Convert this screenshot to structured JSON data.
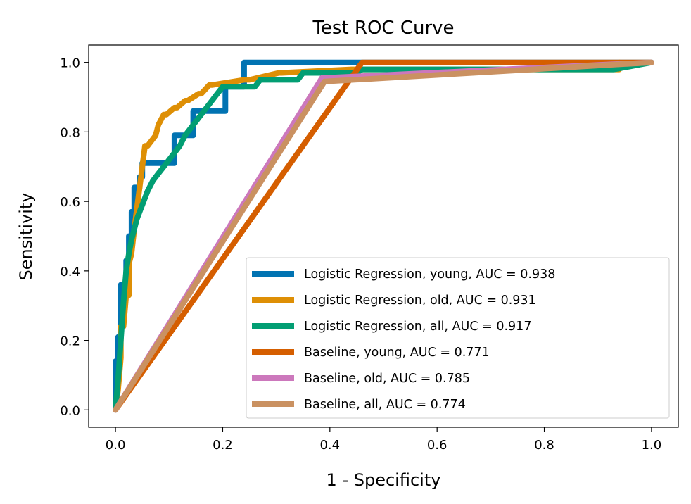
{
  "chart_data": {
    "type": "line",
    "title": "Test ROC Curve",
    "xlabel": "1 - Specificity",
    "ylabel": "Sensitivity",
    "xlim": [
      -0.05,
      1.05
    ],
    "ylim": [
      -0.05,
      1.05
    ],
    "xticks": [
      "0.0",
      "0.2",
      "0.4",
      "0.6",
      "0.8",
      "1.0"
    ],
    "yticks": [
      "0.0",
      "0.2",
      "0.4",
      "0.6",
      "0.8",
      "1.0"
    ],
    "grid": false,
    "legend_position": "lower-right",
    "series": [
      {
        "name": "Logistic Regression, young, AUC = 0.938",
        "color": "#0173b2",
        "x": [
          0,
          0,
          0.005,
          0.005,
          0.01,
          0.01,
          0.02,
          0.02,
          0.025,
          0.025,
          0.03,
          0.03,
          0.035,
          0.035,
          0.045,
          0.045,
          0.05,
          0.05,
          0.07,
          0.07,
          0.11,
          0.11,
          0.145,
          0.145,
          0.205,
          0.205,
          0.24,
          0.24,
          0.45,
          1.0
        ],
        "y": [
          0,
          0.14,
          0.14,
          0.21,
          0.21,
          0.36,
          0.36,
          0.43,
          0.43,
          0.5,
          0.5,
          0.57,
          0.57,
          0.64,
          0.64,
          0.67,
          0.67,
          0.71,
          0.71,
          0.71,
          0.71,
          0.79,
          0.79,
          0.86,
          0.86,
          0.93,
          0.93,
          1.0,
          1.0,
          1.0
        ]
      },
      {
        "name": "Logistic Regression, old, AUC = 0.931",
        "color": "#de8f05",
        "x": [
          0,
          0.005,
          0.01,
          0.01,
          0.015,
          0.02,
          0.025,
          0.025,
          0.03,
          0.035,
          0.04,
          0.045,
          0.05,
          0.055,
          0.06,
          0.075,
          0.08,
          0.09,
          0.095,
          0.11,
          0.115,
          0.13,
          0.135,
          0.155,
          0.16,
          0.175,
          0.18,
          0.24,
          0.25,
          0.305,
          0.31,
          0.44,
          0.94,
          0.94
        ],
        "y": [
          0,
          0.06,
          0.15,
          0.24,
          0.24,
          0.33,
          0.33,
          0.42,
          0.45,
          0.52,
          0.58,
          0.64,
          0.7,
          0.76,
          0.76,
          0.79,
          0.82,
          0.85,
          0.85,
          0.87,
          0.87,
          0.89,
          0.89,
          0.91,
          0.91,
          0.935,
          0.935,
          0.95,
          0.95,
          0.97,
          0.97,
          0.98,
          0.98,
          1.0
        ]
      },
      {
        "name": "Logistic Regression, all, AUC = 0.917",
        "color": "#029e73",
        "x": [
          0,
          0.005,
          0.01,
          0.015,
          0.02,
          0.025,
          0.03,
          0.035,
          0.04,
          0.045,
          0.05,
          0.055,
          0.06,
          0.07,
          0.08,
          0.09,
          0.1,
          0.11,
          0.12,
          0.13,
          0.14,
          0.15,
          0.16,
          0.17,
          0.18,
          0.19,
          0.2,
          0.26,
          0.27,
          0.34,
          0.35,
          0.45,
          0.46,
          0.93,
          1.0
        ],
        "y": [
          0,
          0.09,
          0.2,
          0.31,
          0.4,
          0.45,
          0.49,
          0.52,
          0.55,
          0.57,
          0.59,
          0.61,
          0.63,
          0.66,
          0.68,
          0.7,
          0.72,
          0.74,
          0.76,
          0.79,
          0.81,
          0.83,
          0.85,
          0.87,
          0.89,
          0.91,
          0.93,
          0.93,
          0.95,
          0.95,
          0.97,
          0.97,
          0.98,
          0.98,
          1.0
        ]
      },
      {
        "name": "Baseline, young, AUC = 0.771",
        "color": "#d55e00",
        "x": [
          0,
          0.46,
          1.0
        ],
        "y": [
          0,
          1.0,
          1.0
        ]
      },
      {
        "name": "Baseline, old, AUC = 0.785",
        "color": "#cc78bc",
        "x": [
          0,
          0.385,
          1.0
        ],
        "y": [
          0,
          0.955,
          1.0
        ]
      },
      {
        "name": "Baseline, all, AUC = 0.774",
        "color": "#ca9161",
        "x": [
          0,
          0.39,
          1.0
        ],
        "y": [
          0,
          0.945,
          1.0
        ]
      }
    ]
  }
}
